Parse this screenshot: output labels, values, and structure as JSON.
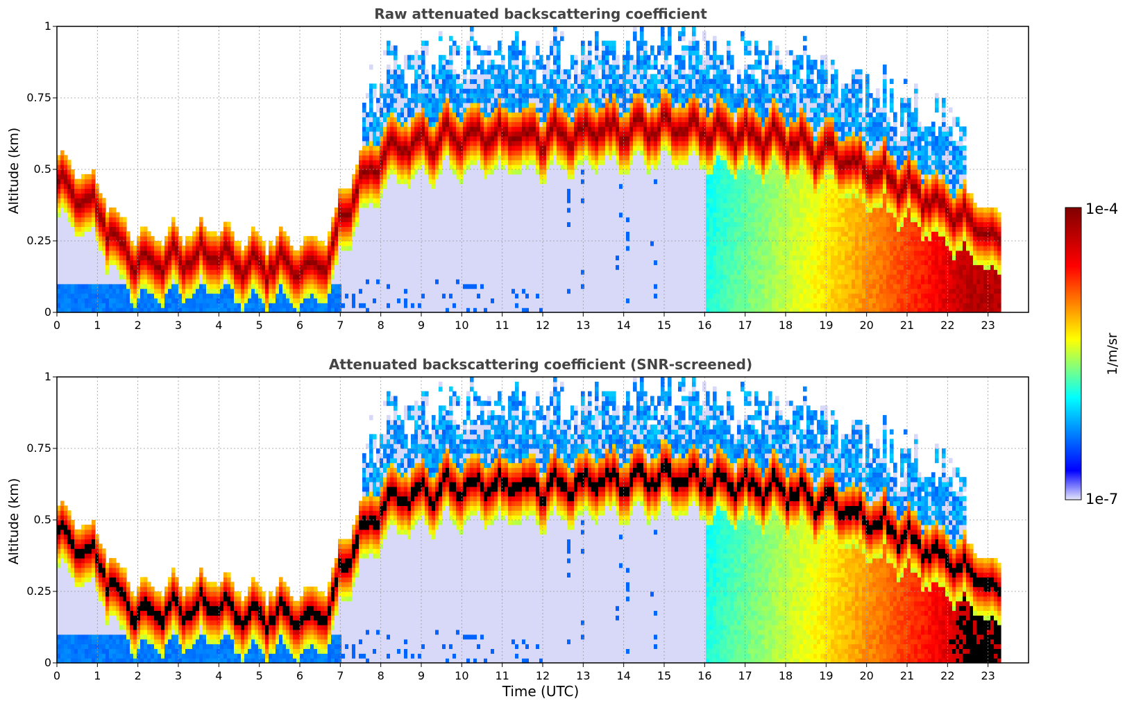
{
  "chart_data": [
    {
      "type": "heatmap",
      "title": "Raw attenuated backscattering coefficient",
      "xlabel": "",
      "ylabel": "Altitude (km)",
      "xlim": [
        0,
        24
      ],
      "ylim": [
        0,
        1
      ],
      "xticks": [
        "0",
        "1",
        "2",
        "3",
        "4",
        "5",
        "6",
        "7",
        "8",
        "9",
        "10",
        "11",
        "12",
        "13",
        "14",
        "15",
        "16",
        "17",
        "18",
        "19",
        "20",
        "21",
        "22",
        "23"
      ],
      "yticks": [
        "0",
        "0.25",
        "0.5",
        "0.75",
        "1"
      ],
      "grid": true,
      "data_end_time": 23.3,
      "screened": false
    },
    {
      "type": "heatmap",
      "title": "Attenuated backscattering coefficient (SNR-screened)",
      "xlabel": "Time (UTC)",
      "ylabel": "Altitude (km)",
      "xlim": [
        0,
        24
      ],
      "ylim": [
        0,
        1
      ],
      "xticks": [
        "0",
        "1",
        "2",
        "3",
        "4",
        "5",
        "6",
        "7",
        "8",
        "9",
        "10",
        "11",
        "12",
        "13",
        "14",
        "15",
        "16",
        "17",
        "18",
        "19",
        "20",
        "21",
        "22",
        "23"
      ],
      "yticks": [
        "0",
        "0.25",
        "0.5",
        "0.75",
        "1"
      ],
      "grid": true,
      "data_end_time": 23.3,
      "screened": true
    }
  ],
  "colorbar": {
    "label": "1/m/sr",
    "max_label": "1e-4",
    "min_label": "1e-7",
    "scale": "log",
    "colormap": "jet",
    "colors": [
      "#e6e6fa",
      "#0000ff",
      "#00ffff",
      "#ffff00",
      "#ff0000",
      "#800000"
    ]
  },
  "boundary_layer_top_km": [
    [
      0,
      0.45
    ],
    [
      0.5,
      0.42
    ],
    [
      1.0,
      0.35
    ],
    [
      1.5,
      0.25
    ],
    [
      2.0,
      0.18
    ],
    [
      3.0,
      0.18
    ],
    [
      4.0,
      0.2
    ],
    [
      4.3,
      0.17
    ],
    [
      5.0,
      0.16
    ],
    [
      6.0,
      0.16
    ],
    [
      6.7,
      0.18
    ],
    [
      7.0,
      0.32
    ],
    [
      7.5,
      0.45
    ],
    [
      8.0,
      0.55
    ],
    [
      9.0,
      0.6
    ],
    [
      10.0,
      0.62
    ],
    [
      11.0,
      0.62
    ],
    [
      12.0,
      0.62
    ],
    [
      13.0,
      0.63
    ],
    [
      14.0,
      0.64
    ],
    [
      15.0,
      0.64
    ],
    [
      16.0,
      0.63
    ],
    [
      17.0,
      0.62
    ],
    [
      18.0,
      0.6
    ],
    [
      19.0,
      0.56
    ],
    [
      20.0,
      0.5
    ],
    [
      21.0,
      0.44
    ],
    [
      22.0,
      0.36
    ],
    [
      23.3,
      0.24
    ]
  ]
}
